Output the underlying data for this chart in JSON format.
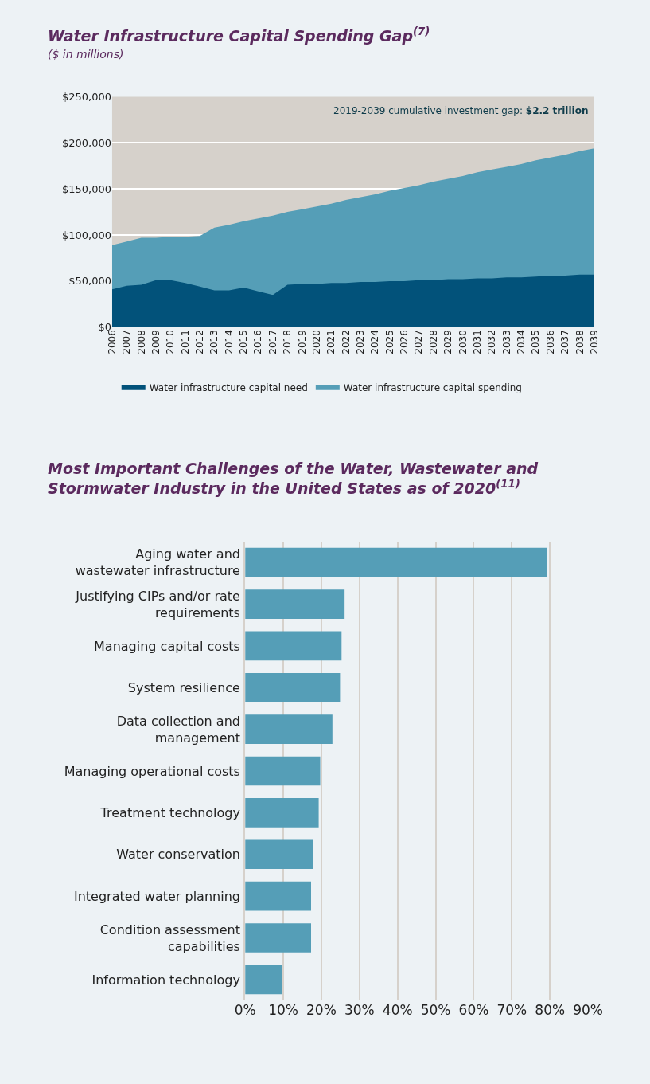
{
  "chart_data": [
    {
      "type": "area",
      "title": "Water Infrastructure Capital Spending Gap$^{(7)}$",
      "subtitle": "($ in millions)",
      "x": [
        2006,
        2007,
        2008,
        2009,
        2010,
        2011,
        2012,
        2013,
        2014,
        2015,
        2016,
        2017,
        2018,
        2019,
        2020,
        2021,
        2022,
        2023,
        2024,
        2025,
        2026,
        2027,
        2028,
        2029,
        2030,
        2031,
        2032,
        2033,
        2034,
        2035,
        2036,
        2037,
        2038,
        2039
      ],
      "series": [
        {
          "name": "Water infrastructure capital spending",
          "color": "#559eb7",
          "values": [
            89000,
            93000,
            97000,
            97000,
            98000,
            98000,
            99000,
            108000,
            111000,
            115000,
            118000,
            121000,
            125000,
            128000,
            131000,
            134000,
            138000,
            141000,
            144000,
            148000,
            151000,
            154000,
            158000,
            161000,
            164000,
            168000,
            171000,
            174000,
            177000,
            181000,
            184000,
            187000,
            191000,
            194000
          ]
        },
        {
          "name": "Water infrastructure capital need",
          "color": "#02527a",
          "values": [
            41000,
            45000,
            46000,
            51000,
            51000,
            48000,
            44000,
            40000,
            40000,
            43000,
            39000,
            35000,
            46000,
            47000,
            47000,
            48000,
            48000,
            49000,
            49000,
            50000,
            50000,
            51000,
            51000,
            52000,
            52000,
            53000,
            53000,
            54000,
            54000,
            55000,
            56000,
            56000,
            57000,
            57000
          ]
        }
      ],
      "annotations": [
        "2019-2039 cumulative investment gap: **$2.2 trillion**"
      ],
      "xlim": [
        2006,
        2039
      ],
      "xticks": [
        2006,
        2007,
        2008,
        2009,
        2010,
        2011,
        2012,
        2013,
        2014,
        2015,
        2016,
        2017,
        2018,
        2019,
        2020,
        2021,
        2022,
        2023,
        2024,
        2025,
        2026,
        2027,
        2028,
        2029,
        2030,
        2031,
        2032,
        2033,
        2034,
        2035,
        2036,
        2037,
        2038,
        2039
      ],
      "ylim": [
        0,
        250000
      ],
      "yticks": [
        {
          "value": 0,
          "label": "$0"
        },
        {
          "value": 50000,
          "label": "$50,000"
        },
        {
          "value": 100000,
          "label": "$100,000"
        },
        {
          "value": 150000,
          "label": "$150,000"
        },
        {
          "value": 200000,
          "label": "$200,000"
        },
        {
          "value": 250000,
          "label": "$250,000"
        }
      ],
      "grid": "y",
      "legend": "bottom"
    },
    {
      "type": "bar",
      "orientation": "horizontal",
      "title": "Most Important Challenges of the Water, Wastewater and\nStormwater Industry in the United States as of 2020$^{(11)}$",
      "categories": [
        "Aging water and\nwastewater infrastructure",
        "Justifying CIPs and/or rate\nrequirements",
        "Managing capital costs",
        "System resilience",
        "Data collection and\nmanagement",
        "Managing operational costs",
        "Treatment technology",
        "Water conservation",
        "Integrated water planning",
        "Condition assessment\ncapabilities",
        "Information technology"
      ],
      "values": [
        79.2,
        26.1,
        25.3,
        24.9,
        22.9,
        19.7,
        19.3,
        17.9,
        17.3,
        17.3,
        9.7
      ],
      "color": "#559eb7",
      "xlim": [
        0,
        90
      ],
      "xticks": [
        {
          "value": 0,
          "label": "0%"
        },
        {
          "value": 10,
          "label": "10%"
        },
        {
          "value": 20,
          "label": "20%"
        },
        {
          "value": 30,
          "label": "30%"
        },
        {
          "value": 40,
          "label": "40%"
        },
        {
          "value": 50,
          "label": "50%"
        },
        {
          "value": 60,
          "label": "60%"
        },
        {
          "value": 70,
          "label": "70%"
        },
        {
          "value": 80,
          "label": "80%"
        },
        {
          "value": 90,
          "label": "90%"
        }
      ],
      "grid": "x"
    }
  ]
}
